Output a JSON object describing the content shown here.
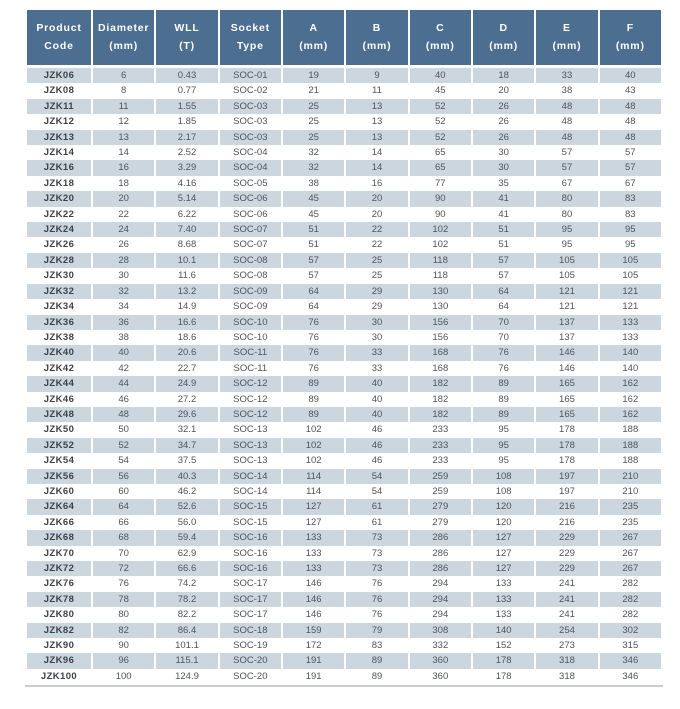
{
  "table": {
    "columns": [
      {
        "key": "product-code",
        "label": "Product\nCode"
      },
      {
        "key": "diameter",
        "label": "Diameter\n(mm)"
      },
      {
        "key": "wll",
        "label": "WLL\n(T)"
      },
      {
        "key": "socket-type",
        "label": "Socket\nType"
      },
      {
        "key": "a",
        "label": "A\n(mm)"
      },
      {
        "key": "b",
        "label": "B\n(mm)"
      },
      {
        "key": "c",
        "label": "C\n(mm)"
      },
      {
        "key": "d",
        "label": "D\n(mm)"
      },
      {
        "key": "e",
        "label": "E\n(mm)"
      },
      {
        "key": "f",
        "label": "F\n(mm)"
      }
    ],
    "rows": [
      [
        "JZK06",
        "6",
        "0.43",
        "SOC-01",
        "19",
        "9",
        "40",
        "18",
        "33",
        "40"
      ],
      [
        "JZK08",
        "8",
        "0.77",
        "SOC-02",
        "21",
        "11",
        "45",
        "20",
        "38",
        "43"
      ],
      [
        "JZK11",
        "11",
        "1.55",
        "SOC-03",
        "25",
        "13",
        "52",
        "26",
        "48",
        "48"
      ],
      [
        "JZK12",
        "12",
        "1.85",
        "SOC-03",
        "25",
        "13",
        "52",
        "26",
        "48",
        "48"
      ],
      [
        "JZK13",
        "13",
        "2.17",
        "SOC-03",
        "25",
        "13",
        "52",
        "26",
        "48",
        "48"
      ],
      [
        "JZK14",
        "14",
        "2.52",
        "SOC-04",
        "32",
        "14",
        "65",
        "30",
        "57",
        "57"
      ],
      [
        "JZK16",
        "16",
        "3.29",
        "SOC-04",
        "32",
        "14",
        "65",
        "30",
        "57",
        "57"
      ],
      [
        "JZK18",
        "18",
        "4.16",
        "SOC-05",
        "38",
        "16",
        "77",
        "35",
        "67",
        "67"
      ],
      [
        "JZK20",
        "20",
        "5.14",
        "SOC-06",
        "45",
        "20",
        "90",
        "41",
        "80",
        "83"
      ],
      [
        "JZK22",
        "22",
        "6.22",
        "SOC-06",
        "45",
        "20",
        "90",
        "41",
        "80",
        "83"
      ],
      [
        "JZK24",
        "24",
        "7.40",
        "SOC-07",
        "51",
        "22",
        "102",
        "51",
        "95",
        "95"
      ],
      [
        "JZK26",
        "26",
        "8.68",
        "SOC-07",
        "51",
        "22",
        "102",
        "51",
        "95",
        "95"
      ],
      [
        "JZK28",
        "28",
        "10.1",
        "SOC-08",
        "57",
        "25",
        "118",
        "57",
        "105",
        "105"
      ],
      [
        "JZK30",
        "30",
        "11.6",
        "SOC-08",
        "57",
        "25",
        "118",
        "57",
        "105",
        "105"
      ],
      [
        "JZK32",
        "32",
        "13.2",
        "SOC-09",
        "64",
        "29",
        "130",
        "64",
        "121",
        "121"
      ],
      [
        "JZK34",
        "34",
        "14.9",
        "SOC-09",
        "64",
        "29",
        "130",
        "64",
        "121",
        "121"
      ],
      [
        "JZK36",
        "36",
        "16.6",
        "SOC-10",
        "76",
        "30",
        "156",
        "70",
        "137",
        "133"
      ],
      [
        "JZK38",
        "38",
        "18.6",
        "SOC-10",
        "76",
        "30",
        "156",
        "70",
        "137",
        "133"
      ],
      [
        "JZK40",
        "40",
        "20.6",
        "SOC-11",
        "76",
        "33",
        "168",
        "76",
        "146",
        "140"
      ],
      [
        "JZK42",
        "42",
        "22.7",
        "SOC-11",
        "76",
        "33",
        "168",
        "76",
        "146",
        "140"
      ],
      [
        "JZK44",
        "44",
        "24.9",
        "SOC-12",
        "89",
        "40",
        "182",
        "89",
        "165",
        "162"
      ],
      [
        "JZK46",
        "46",
        "27.2",
        "SOC-12",
        "89",
        "40",
        "182",
        "89",
        "165",
        "162"
      ],
      [
        "JZK48",
        "48",
        "29.6",
        "SOC-12",
        "89",
        "40",
        "182",
        "89",
        "165",
        "162"
      ],
      [
        "JZK50",
        "50",
        "32.1",
        "SOC-13",
        "102",
        "46",
        "233",
        "95",
        "178",
        "188"
      ],
      [
        "JZK52",
        "52",
        "34.7",
        "SOC-13",
        "102",
        "46",
        "233",
        "95",
        "178",
        "188"
      ],
      [
        "JZK54",
        "54",
        "37.5",
        "SOC-13",
        "102",
        "46",
        "233",
        "95",
        "178",
        "188"
      ],
      [
        "JZK56",
        "56",
        "40.3",
        "SOC-14",
        "114",
        "54",
        "259",
        "108",
        "197",
        "210"
      ],
      [
        "JZK60",
        "60",
        "46.2",
        "SOC-14",
        "114",
        "54",
        "259",
        "108",
        "197",
        "210"
      ],
      [
        "JZK64",
        "64",
        "52.6",
        "SOC-15",
        "127",
        "61",
        "279",
        "120",
        "216",
        "235"
      ],
      [
        "JZK66",
        "66",
        "56.0",
        "SOC-15",
        "127",
        "61",
        "279",
        "120",
        "216",
        "235"
      ],
      [
        "JZK68",
        "68",
        "59.4",
        "SOC-16",
        "133",
        "73",
        "286",
        "127",
        "229",
        "267"
      ],
      [
        "JZK70",
        "70",
        "62.9",
        "SOC-16",
        "133",
        "73",
        "286",
        "127",
        "229",
        "267"
      ],
      [
        "JZK72",
        "72",
        "66.6",
        "SOC-16",
        "133",
        "73",
        "286",
        "127",
        "229",
        "267"
      ],
      [
        "JZK76",
        "76",
        "74.2",
        "SOC-17",
        "146",
        "76",
        "294",
        "133",
        "241",
        "282"
      ],
      [
        "JZK78",
        "78",
        "78.2",
        "SOC-17",
        "146",
        "76",
        "294",
        "133",
        "241",
        "282"
      ],
      [
        "JZK80",
        "80",
        "82.2",
        "SOC-17",
        "146",
        "76",
        "294",
        "133",
        "241",
        "282"
      ],
      [
        "JZK82",
        "82",
        "86.4",
        "SOC-18",
        "159",
        "79",
        "308",
        "140",
        "254",
        "302"
      ],
      [
        "JZK90",
        "90",
        "101.1",
        "SOC-19",
        "172",
        "83",
        "332",
        "152",
        "273",
        "315"
      ],
      [
        "JZK96",
        "96",
        "115.1",
        "SOC-20",
        "191",
        "89",
        "360",
        "178",
        "318",
        "346"
      ],
      [
        "JZK100",
        "100",
        "124.9",
        "SOC-20",
        "191",
        "89",
        "360",
        "178",
        "318",
        "346"
      ]
    ]
  },
  "colors": {
    "header_bg": "#4b6e91",
    "header_text": "#ffffff",
    "stripe_bg": "#ccd6df",
    "body_text": "#4e545a",
    "code_text": "#3d4247",
    "bottom_rule": "#caccce"
  }
}
